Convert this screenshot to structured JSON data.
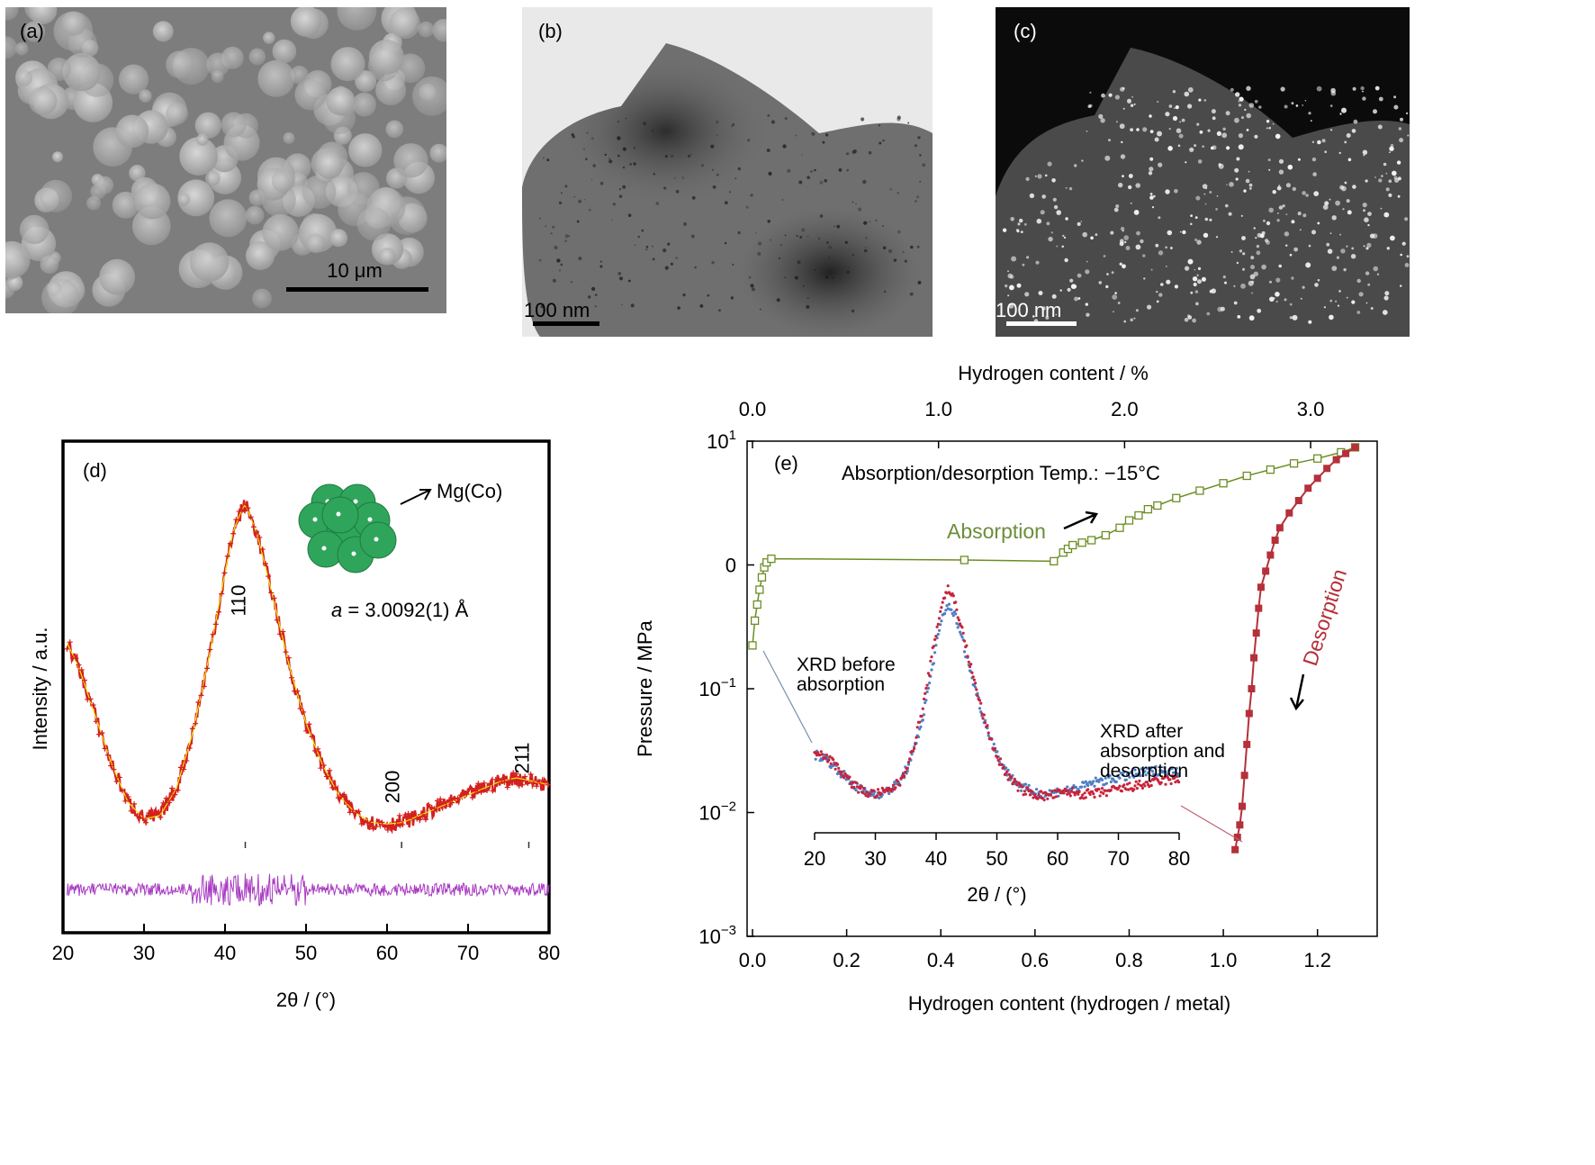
{
  "panels": {
    "a": {
      "label": "(a)",
      "scale_bar": "10 μm"
    },
    "b": {
      "label": "(b)",
      "scale_bar": "100 nm"
    },
    "c": {
      "label": "(c)",
      "scale_bar": "100 nm"
    }
  },
  "chart_data": [
    {
      "panel": "(d)",
      "type": "line",
      "xlabel": "2θ / (°)",
      "ylabel": "Intensity / a.u.",
      "xlim": [
        20,
        80
      ],
      "xticks": [
        "20",
        "30",
        "40",
        "50",
        "60",
        "70",
        "80"
      ],
      "peak_labels": [
        {
          "text": "110",
          "x": 42.5
        },
        {
          "text": "200",
          "x": 61.5
        },
        {
          "text": "211",
          "x": 77.5
        }
      ],
      "bragg_ticks": [
        42.5,
        61.8,
        77.5
      ],
      "structure_label": "Mg(Co)",
      "lattice_label_italic": "a",
      "lattice_label_rest": " = 3.0092(1) Å",
      "series": [
        {
          "kind": "observed",
          "color": "#d42020",
          "x": [
            20,
            22,
            24,
            26,
            28,
            30,
            32,
            34,
            36,
            38,
            40,
            41,
            42,
            42.5,
            43,
            44,
            46,
            48,
            50,
            52,
            54,
            56,
            58,
            60,
            62,
            64,
            66,
            68,
            70,
            72,
            74,
            76,
            78,
            80
          ],
          "y": [
            0.62,
            0.52,
            0.38,
            0.24,
            0.13,
            0.08,
            0.09,
            0.17,
            0.33,
            0.55,
            0.8,
            0.92,
            0.98,
            1.0,
            0.97,
            0.91,
            0.72,
            0.52,
            0.36,
            0.24,
            0.15,
            0.1,
            0.07,
            0.065,
            0.07,
            0.09,
            0.11,
            0.13,
            0.15,
            0.17,
            0.19,
            0.2,
            0.19,
            0.18
          ]
        },
        {
          "kind": "difference",
          "color": "#b030b0",
          "baseline": 0.0
        }
      ],
      "colors": {
        "observed": "#d42020",
        "calc": "#f2e600",
        "diff": "#a83ac2",
        "atom": "#2fa55c"
      }
    },
    {
      "panel": "(e)",
      "type": "scatter",
      "title_line": "Absorption/desorption Temp.: −15°C",
      "xlabel": "Hydrogen content (hydrogen / metal)",
      "x2label": "Hydrogen content / %",
      "ylabel": "Pressure / MPa",
      "xlim": [
        0.0,
        1.3
      ],
      "x2lim": [
        0.0,
        3.3
      ],
      "ylim_log10": [
        -3,
        1
      ],
      "xticks": [
        "0.0",
        "0.2",
        "0.4",
        "0.6",
        "0.8",
        "1.0",
        "1.2"
      ],
      "x2ticks": [
        "0.0",
        "1.0",
        "2.0",
        "3.0"
      ],
      "yticks": [
        {
          "base": "10",
          "exp": "1"
        },
        {
          "base": "0",
          "exp": ""
        },
        {
          "base": "10",
          "exp": "−1"
        },
        {
          "base": "10",
          "exp": "−2"
        },
        {
          "base": "10",
          "exp": "−3"
        }
      ],
      "series": [
        {
          "name": "Absorption",
          "color": "#6b8e23",
          "x": [
            0.0,
            0.005,
            0.01,
            0.015,
            0.02,
            0.025,
            0.03,
            0.04,
            0.45,
            0.64,
            0.66,
            0.67,
            0.68,
            0.7,
            0.72,
            0.75,
            0.78,
            0.8,
            0.82,
            0.84,
            0.86,
            0.9,
            0.95,
            1.0,
            1.05,
            1.1,
            1.15,
            1.2,
            1.25,
            1.28
          ],
          "y": [
            -0.65,
            -0.45,
            -0.32,
            -0.2,
            -0.1,
            -0.02,
            0.02,
            0.05,
            0.04,
            0.03,
            0.1,
            0.13,
            0.16,
            0.18,
            0.2,
            0.24,
            0.3,
            0.36,
            0.4,
            0.45,
            0.48,
            0.54,
            0.6,
            0.66,
            0.72,
            0.77,
            0.82,
            0.86,
            0.91,
            0.95
          ]
        },
        {
          "name": "Desorption",
          "color": "#b5303a",
          "x": [
            1.28,
            1.26,
            1.24,
            1.22,
            1.2,
            1.18,
            1.16,
            1.14,
            1.12,
            1.11,
            1.1,
            1.09,
            1.08,
            1.075,
            1.07,
            1.065,
            1.06,
            1.055,
            1.05,
            1.045,
            1.04,
            1.035,
            1.03,
            1.025
          ],
          "y": [
            0.95,
            0.9,
            0.85,
            0.78,
            0.7,
            0.62,
            0.52,
            0.42,
            0.3,
            0.2,
            0.08,
            -0.05,
            -0.18,
            -0.35,
            -0.55,
            -0.75,
            -1.0,
            -1.2,
            -1.45,
            -1.7,
            -1.95,
            -2.1,
            -2.2,
            -2.3
          ]
        }
      ],
      "arrow_labels": {
        "absorption": "Absorption",
        "desorption": "Desorption"
      },
      "annotations": {
        "xrd_before": [
          "XRD before",
          "absorption"
        ],
        "xrd_after": [
          "XRD after",
          "absorption and",
          "desorption"
        ]
      },
      "inset": {
        "xlabel": "2θ / (°)",
        "xlim": [
          20,
          80
        ],
        "xticks": [
          "20",
          "30",
          "40",
          "50",
          "60",
          "70",
          "80"
        ],
        "series": [
          {
            "color": "#4f7fc4",
            "x": [
              20,
              22,
              24,
              26,
              28,
              30,
              32,
              34,
              36,
              38,
              40,
              41,
              42,
              43,
              44,
              46,
              48,
              50,
              52,
              54,
              56,
              58,
              60,
              62,
              64,
              66,
              68,
              70,
              72,
              74,
              76,
              78,
              80
            ],
            "y": [
              0.22,
              0.2,
              0.15,
              0.1,
              0.06,
              0.05,
              0.06,
              0.1,
              0.2,
              0.4,
              0.68,
              0.8,
              0.86,
              0.82,
              0.74,
              0.54,
              0.36,
              0.22,
              0.13,
              0.08,
              0.06,
              0.05,
              0.06,
              0.07,
              0.08,
              0.1,
              0.11,
              0.12,
              0.13,
              0.14,
              0.15,
              0.15,
              0.14
            ]
          },
          {
            "color": "#c8243c",
            "x": [
              20,
              22,
              24,
              26,
              28,
              30,
              32,
              34,
              36,
              38,
              40,
              41,
              42,
              43,
              44,
              46,
              48,
              50,
              52,
              54,
              56,
              58,
              60,
              62,
              64,
              66,
              68,
              70,
              72,
              74,
              76,
              78,
              80
            ],
            "y": [
              0.24,
              0.21,
              0.16,
              0.1,
              0.06,
              0.05,
              0.06,
              0.1,
              0.22,
              0.44,
              0.74,
              0.87,
              0.93,
              0.88,
              0.78,
              0.56,
              0.36,
              0.21,
              0.12,
              0.07,
              0.05,
              0.04,
              0.05,
              0.06,
              0.05,
              0.05,
              0.06,
              0.07,
              0.08,
              0.09,
              0.1,
              0.11,
              0.11
            ]
          }
        ]
      }
    }
  ]
}
